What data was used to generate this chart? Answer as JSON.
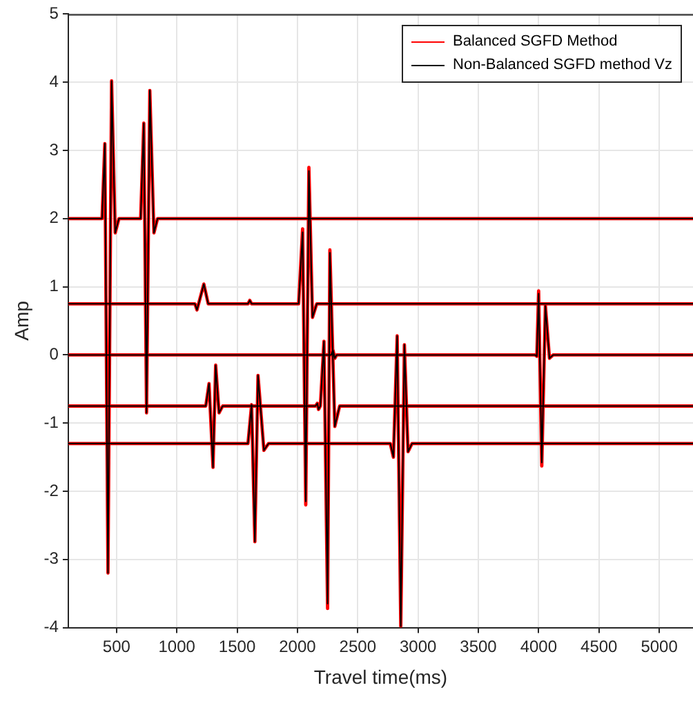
{
  "chart_data": {
    "type": "line",
    "xlabel": "Travel time(ms)",
    "ylabel": "Amp",
    "xlim": [
      100,
      5280
    ],
    "xticks": [
      500,
      1000,
      1500,
      2000,
      2500,
      3000,
      3500,
      4000,
      4500,
      5000
    ],
    "ylim": [
      -4,
      5
    ],
    "yticks": [
      -4,
      -3,
      -2,
      -1,
      0,
      1,
      2,
      3,
      4,
      5
    ],
    "grid": true,
    "legend": "top right",
    "marker": "none",
    "line_style": "solid",
    "series": [
      {
        "name": "Balanced SGFD Method",
        "color": "#ff0000",
        "x": [
          100,
          380,
          403,
          429,
          459,
          489,
          520,
          700,
          726,
          749,
          776,
          810,
          840,
          5280,
          null,
          100,
          1150,
          1167,
          1224,
          1260,
          1590,
          1605,
          1620,
          2010,
          2043,
          2069,
          2095,
          2125,
          2160,
          5280,
          null,
          100,
          2280,
          2295,
          2310,
          2325,
          3970,
          3985,
          4000,
          4026,
          4056,
          4090,
          4120,
          5280,
          null,
          100,
          1240,
          1267,
          1300,
          1322,
          1350,
          1380,
          2150,
          2165,
          2175,
          2190,
          2200,
          2220,
          2250,
          2269,
          2310,
          2350,
          5280,
          null,
          100,
          1590,
          1620,
          1647,
          1673,
          1722,
          1760,
          2770,
          2796,
          2827,
          2857,
          2887,
          2917,
          2950,
          5280
        ],
        "values": [
          2,
          2,
          3.1,
          -3.2,
          4.02,
          1.79,
          2,
          2,
          3.4,
          -0.85,
          3.88,
          1.79,
          2,
          2,
          null,
          0.75,
          0.75,
          0.66,
          1.04,
          0.75,
          0.75,
          0.8,
          0.75,
          0.75,
          1.85,
          -2.2,
          2.75,
          0.55,
          0.75,
          0.75,
          null,
          0,
          0,
          0.07,
          -0.05,
          0,
          0,
          -0.02,
          0.94,
          -1.63,
          0.72,
          -0.05,
          0,
          0,
          null,
          -0.75,
          -0.75,
          -0.42,
          -1.65,
          -0.15,
          -0.85,
          -0.75,
          -0.75,
          -0.71,
          -0.8,
          -0.75,
          -0.75,
          0.2,
          -3.72,
          1.54,
          -1.05,
          -0.75,
          -0.75,
          null,
          -1.3,
          -1.3,
          -0.73,
          -2.74,
          -0.3,
          -1.4,
          -1.3,
          -1.3,
          -1.5,
          0.28,
          -3.98,
          0.15,
          -1.42,
          -1.3,
          -1.3
        ]
      },
      {
        "name": "Non-Balanced SGFD method Vz",
        "color": "#000000",
        "x": [
          100,
          380,
          403,
          429,
          459,
          489,
          520,
          700,
          726,
          749,
          776,
          810,
          840,
          5280,
          null,
          100,
          1150,
          1167,
          1224,
          1260,
          1590,
          1605,
          1620,
          2010,
          2043,
          2069,
          2095,
          2125,
          2160,
          5280,
          null,
          100,
          2280,
          2295,
          2310,
          2325,
          3970,
          3985,
          4000,
          4026,
          4056,
          4090,
          4120,
          5280,
          null,
          100,
          1240,
          1267,
          1300,
          1322,
          1350,
          1380,
          2150,
          2165,
          2175,
          2190,
          2200,
          2220,
          2250,
          2269,
          2310,
          2350,
          5280,
          null,
          100,
          1590,
          1620,
          1647,
          1673,
          1722,
          1760,
          2770,
          2796,
          2827,
          2857,
          2887,
          2917,
          2950,
          5280
        ],
        "values": [
          2,
          2,
          3.1,
          -3.2,
          4.02,
          1.79,
          2,
          2,
          3.4,
          -0.85,
          3.88,
          1.79,
          2,
          2,
          null,
          0.75,
          0.75,
          0.66,
          1.04,
          0.75,
          0.75,
          0.8,
          0.75,
          0.75,
          1.8,
          -2.15,
          2.7,
          0.55,
          0.75,
          0.75,
          null,
          0,
          0,
          0.07,
          -0.05,
          0,
          0,
          -0.02,
          0.9,
          -1.58,
          0.72,
          -0.05,
          0,
          0,
          null,
          -0.75,
          -0.75,
          -0.42,
          -1.65,
          -0.15,
          -0.85,
          -0.75,
          -0.75,
          -0.71,
          -0.8,
          -0.75,
          -0.75,
          0.2,
          -3.65,
          1.5,
          -1.05,
          -0.75,
          -0.75,
          null,
          -1.3,
          -1.3,
          -0.73,
          -2.74,
          -0.3,
          -1.4,
          -1.3,
          -1.3,
          -1.5,
          0.28,
          -3.98,
          0.15,
          -1.42,
          -1.3,
          -1.3
        ]
      }
    ]
  }
}
